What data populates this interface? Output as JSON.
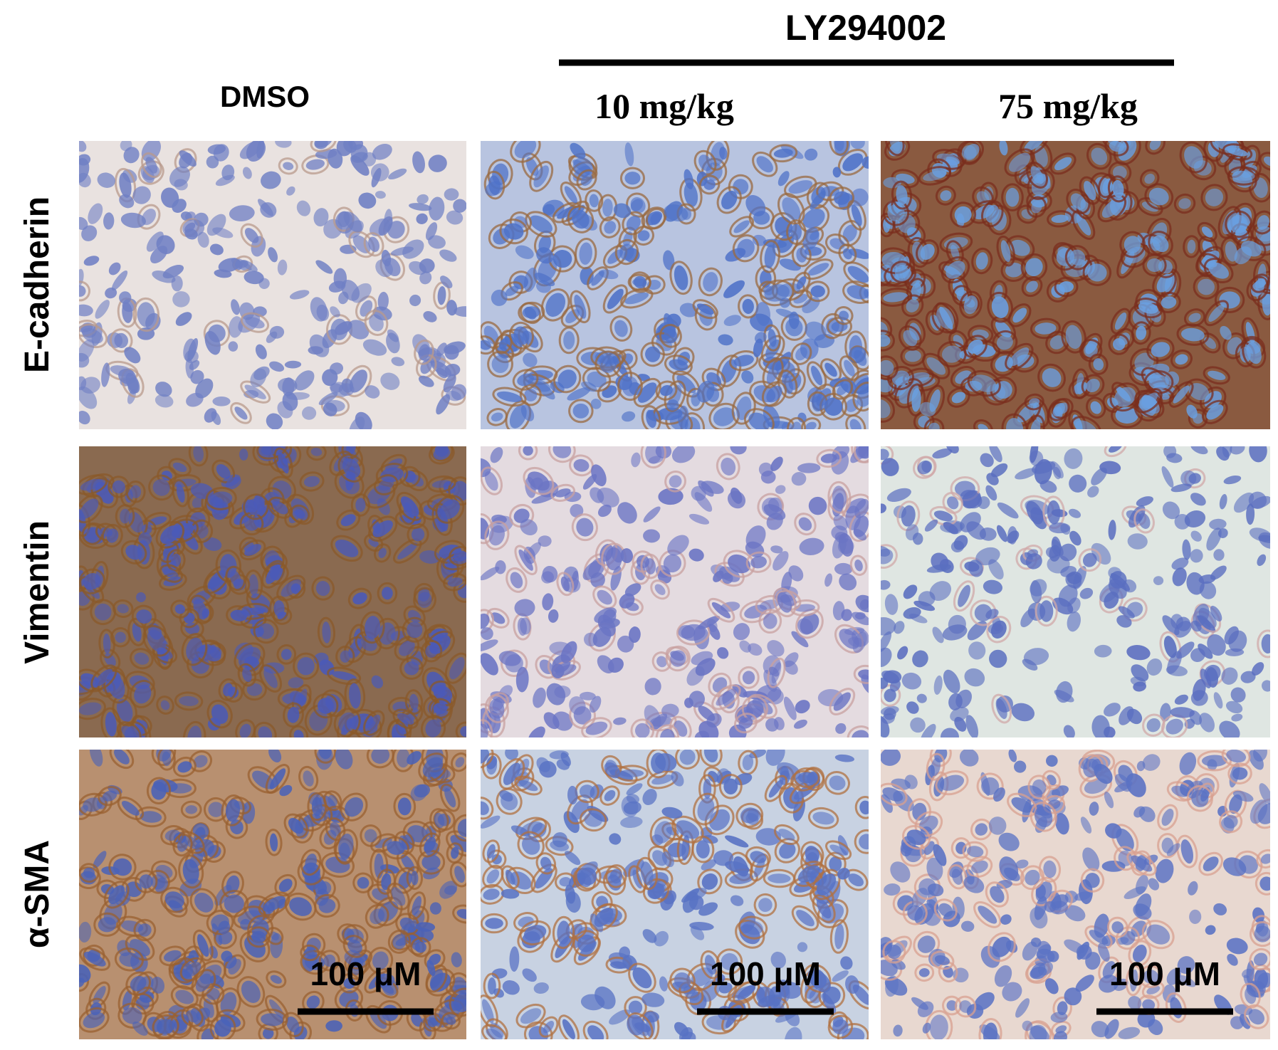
{
  "header": {
    "group_label": "LY294002"
  },
  "columns": [
    "DMSO",
    "10 mg/kg",
    "75 mg/kg"
  ],
  "rows": [
    "E-cadherin",
    "Vimentin",
    "α-SMA"
  ],
  "scale_bars": [
    "100 μM",
    "100 μM",
    "100 μM"
  ]
}
